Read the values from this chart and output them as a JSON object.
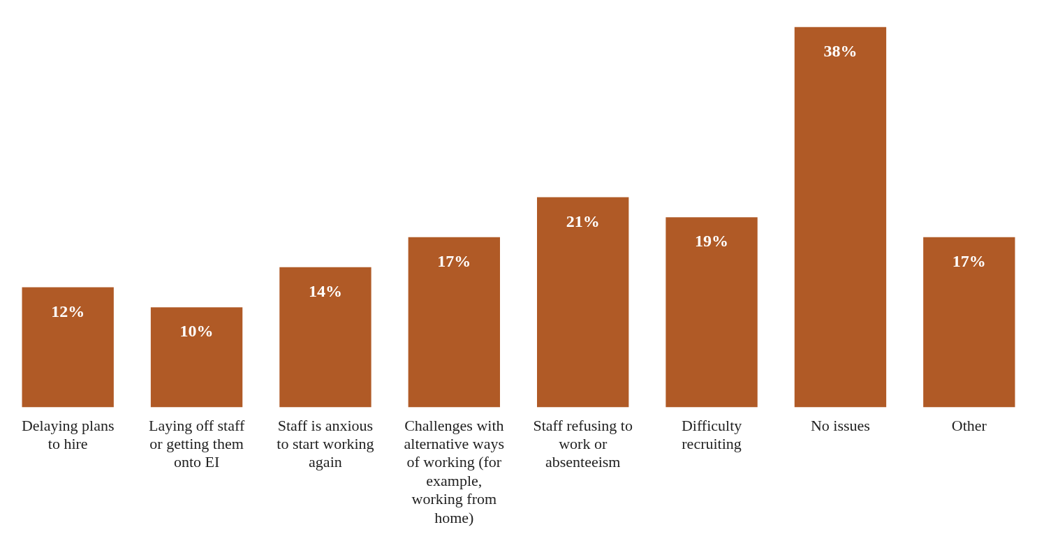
{
  "chart_data": {
    "type": "bar",
    "categories": [
      "Delaying plans to hire",
      "Laying off staff or getting them onto EI",
      "Staff is anxious to start working again",
      "Challenges with alternative ways of working (for example, working from home)",
      "Staff refusing to work or absenteeism",
      "Difficulty recruiting",
      "No issues",
      "Other"
    ],
    "values": [
      12,
      10,
      14,
      17,
      21,
      19,
      38,
      17
    ],
    "value_labels": [
      "12%",
      "10%",
      "14%",
      "17%",
      "21%",
      "19%",
      "38%",
      "17%"
    ],
    "color": "#b05a26",
    "grid": false,
    "legend": false
  }
}
